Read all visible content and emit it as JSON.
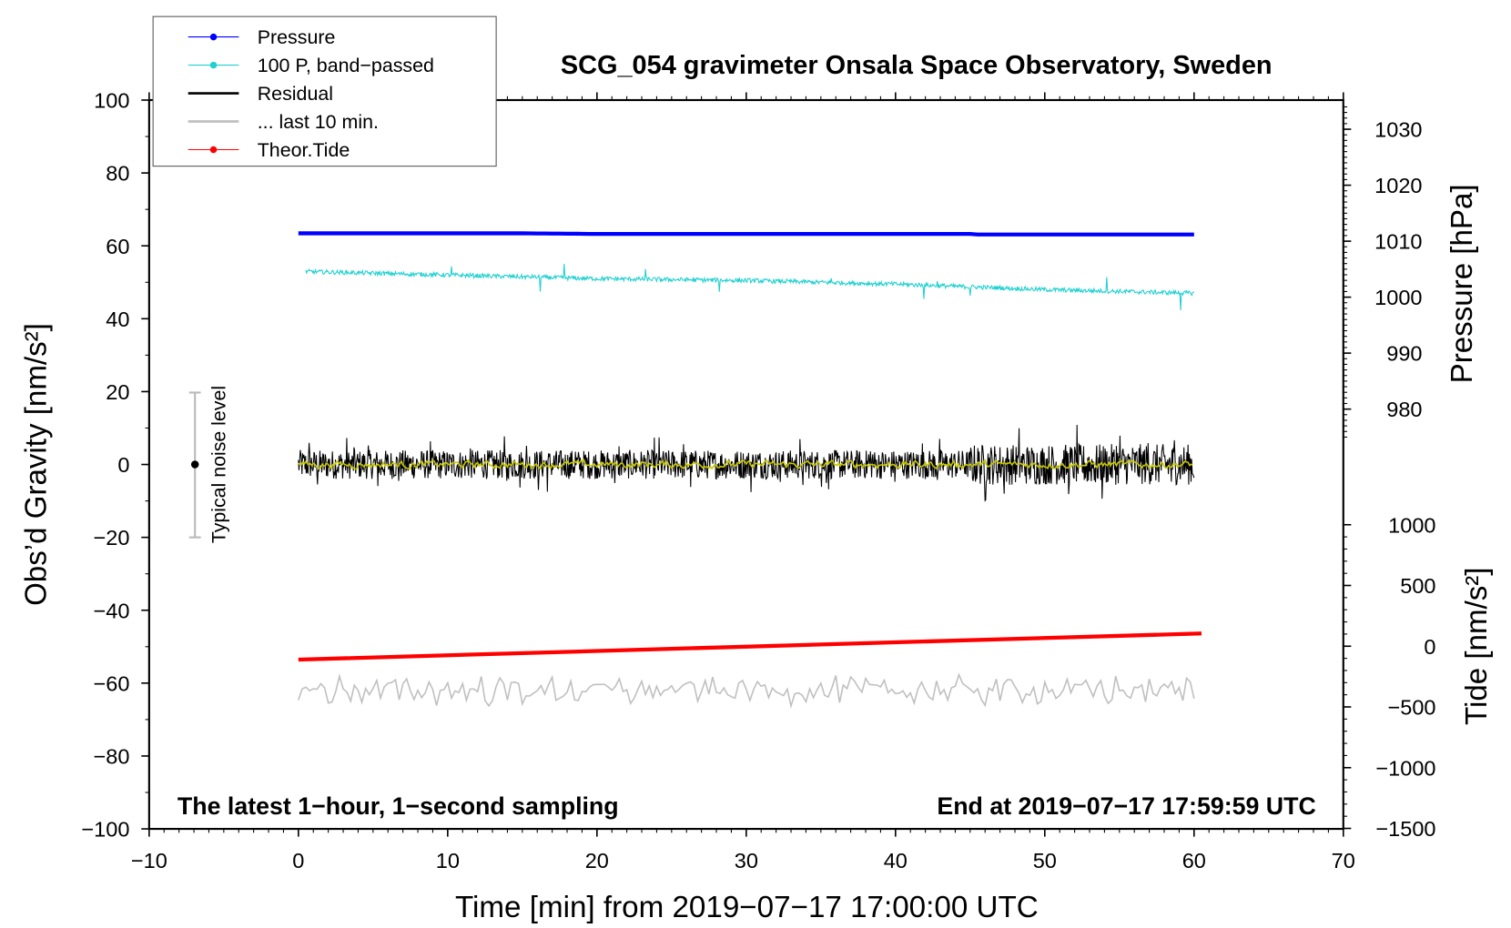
{
  "chart_data": {
    "type": "line",
    "title": "SCG_054 gravimeter Onsala Space Observatory, Sweden",
    "xlabel": "Time [min] from 2019−07−17 17:00:00 UTC",
    "ylabel": "Obs’d Gravity [nm/s²]",
    "ylabel_right_top": "Pressure [hPa]",
    "ylabel_right_bottom": "Tide [nm/s²]",
    "xlim": [
      -10,
      70
    ],
    "ylim": [
      -100,
      100
    ],
    "pressure_ticks_range": [
      980,
      1030
    ],
    "tide_range": [
      -1500,
      1000
    ],
    "x_ticks": [
      "−10",
      "0",
      "10",
      "20",
      "30",
      "40",
      "50",
      "60",
      "70"
    ],
    "y_ticks": [
      "100",
      "80",
      "60",
      "40",
      "20",
      "0",
      "−20",
      "−40",
      "−60",
      "−80",
      "−100"
    ],
    "pressure_ticks": [
      "1030",
      "1020",
      "1010",
      "1000",
      "990",
      "980"
    ],
    "tide_ticks": [
      "1000",
      "500",
      "0",
      "−500",
      "−1000",
      "−1500"
    ],
    "annotation_left": "The latest 1−hour, 1−second sampling",
    "annotation_right": "End at 2019−07−17 17:59:59 UTC",
    "noise_bar": {
      "label": "Typical noise level",
      "center": 0,
      "range": [
        -20,
        20
      ],
      "x": -7
    },
    "legend": {
      "placement": "top-left",
      "entries": [
        {
          "label": "Pressure",
          "color": "#0000ff"
        },
        {
          "label": "100 P, band−passed",
          "color": "#20d0d0"
        },
        {
          "label": "Residual",
          "color": "#000000"
        },
        {
          "label": "... last 10 min.",
          "color": "#c0c0c0"
        },
        {
          "label": "Theor.Tide",
          "color": "#ff0000"
        }
      ]
    },
    "series": [
      {
        "name": "Pressure",
        "unit": "hPa",
        "x": [
          0,
          15,
          20,
          45,
          45.1,
          60
        ],
        "values": [
          1011.4,
          1011.4,
          1011.3,
          1011.3,
          1011.2,
          1011.2
        ]
      },
      {
        "name": "100 P, band-passed",
        "unit": "nm/s2 (plot offset)",
        "x": [
          0,
          10,
          20,
          30,
          40,
          50,
          60
        ],
        "values": [
          53,
          52,
          51,
          50.5,
          49.5,
          48,
          47
        ]
      },
      {
        "name": "Residual",
        "unit": "nm/s2",
        "x": [
          0,
          60
        ],
        "values": [
          0,
          0
        ],
        "noise_amplitude": 4
      },
      {
        "name": "... last 10 min.",
        "unit": "nm/s2 (plot offset)",
        "x": [
          0,
          60
        ],
        "values": [
          -62,
          -62
        ],
        "noise_amplitude": 3
      },
      {
        "name": "Theor.Tide",
        "unit": "nm/s2",
        "x": [
          0,
          60.5
        ],
        "values": [
          -110,
          105
        ]
      }
    ]
  }
}
